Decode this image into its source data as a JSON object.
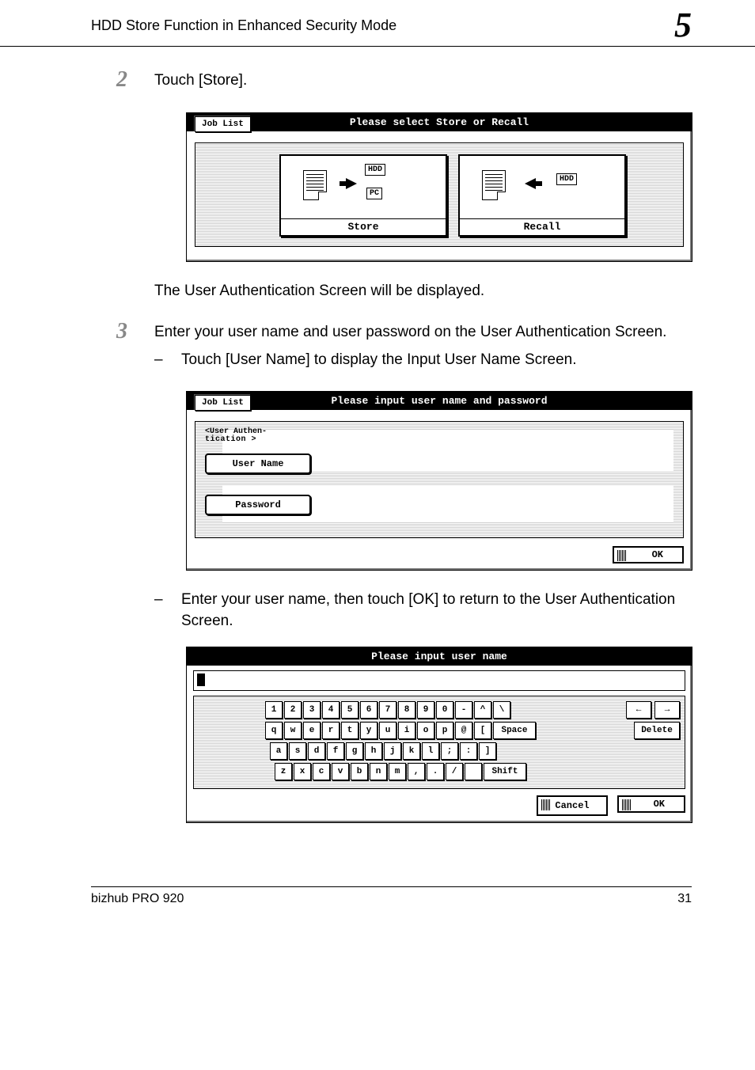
{
  "header": {
    "title": "HDD Store Function in Enhanced Security Mode",
    "section_number": "5"
  },
  "steps": {
    "s2": {
      "num": "2",
      "text": "Touch [Store]."
    },
    "after_fig1": "The User Authentication Screen will be displayed.",
    "s3": {
      "num": "3",
      "text": "Enter your user name and user password on the User Authentication Screen.",
      "bullet1": "Touch [User Name] to display the Input User Name Screen.",
      "bullet2": "Enter your user name, then touch [OK] to return to the User Authentication Screen."
    }
  },
  "fig1": {
    "header": "Please select Store or Recall",
    "job_list": "Job List",
    "store_label": "Store",
    "recall_label": "Recall",
    "hdd": "HDD",
    "pc": "PC"
  },
  "fig2": {
    "header": "Please input user name and password",
    "job_list": "Job List",
    "section_title_line1": "<User Authen-",
    "section_title_line2": "tication   >",
    "user_name": "User Name",
    "password": "Password",
    "ok": "OK"
  },
  "fig3": {
    "header": "Please input user name",
    "row1": [
      "1",
      "2",
      "3",
      "4",
      "5",
      "6",
      "7",
      "8",
      "9",
      "0",
      "-",
      "^",
      "\\"
    ],
    "row2": [
      "q",
      "w",
      "e",
      "r",
      "t",
      "y",
      "u",
      "i",
      "o",
      "p",
      "@",
      "["
    ],
    "row3": [
      "a",
      "s",
      "d",
      "f",
      "g",
      "h",
      "j",
      "k",
      "l",
      ";",
      ":",
      "]"
    ],
    "row4": [
      "z",
      "x",
      "c",
      "v",
      "b",
      "n",
      "m",
      ",",
      ".",
      "/"
    ],
    "space": "Space",
    "shift": "Shift",
    "delete": "Delete",
    "arrow_left": "←",
    "arrow_right": "→",
    "cancel": "Cancel",
    "ok": "OK"
  },
  "footer": {
    "product": "bizhub PRO 920",
    "page": "31"
  }
}
